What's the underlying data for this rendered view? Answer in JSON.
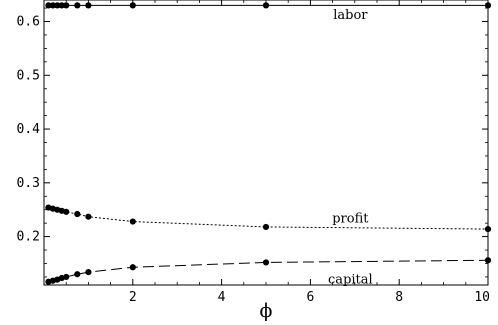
{
  "chart_data": {
    "type": "line",
    "title": "",
    "xlabel": "ϕ",
    "ylabel": "",
    "xlim": [
      0,
      10
    ],
    "ylim": [
      0.11,
      0.64
    ],
    "grid": false,
    "legend": "none",
    "x_ticks": [
      "2",
      "4",
      "6",
      "8",
      "10"
    ],
    "x_tick_values": [
      2,
      4,
      6,
      8,
      10
    ],
    "y_ticks": [
      "0.2",
      "0.3",
      "0.4",
      "0.5",
      "0.6"
    ],
    "y_tick_values": [
      0.2,
      0.3,
      0.4,
      0.5,
      0.6
    ],
    "x": [
      0.1,
      0.2,
      0.3,
      0.4,
      0.5,
      0.75,
      1,
      2,
      5,
      10
    ],
    "series": [
      {
        "name": "labor",
        "line_style": "solid",
        "color": "#000000",
        "values": [
          0.63,
          0.63,
          0.63,
          0.63,
          0.63,
          0.63,
          0.63,
          0.63,
          0.63,
          0.63
        ]
      },
      {
        "name": "profit",
        "line_style": "dotted",
        "color": "#000000",
        "values": [
          0.254,
          0.252,
          0.25,
          0.248,
          0.246,
          0.242,
          0.237,
          0.228,
          0.218,
          0.214
        ]
      },
      {
        "name": "capital",
        "line_style": "dashed",
        "color": "#000000",
        "values": [
          0.116,
          0.118,
          0.12,
          0.123,
          0.125,
          0.13,
          0.134,
          0.143,
          0.152,
          0.156
        ]
      }
    ],
    "annotations": [
      {
        "text": "labor",
        "x": 6.9,
        "y": 0.605
      },
      {
        "text": "profit",
        "x": 6.9,
        "y": 0.226
      },
      {
        "text": "capital",
        "x": 6.9,
        "y": 0.113
      }
    ]
  }
}
